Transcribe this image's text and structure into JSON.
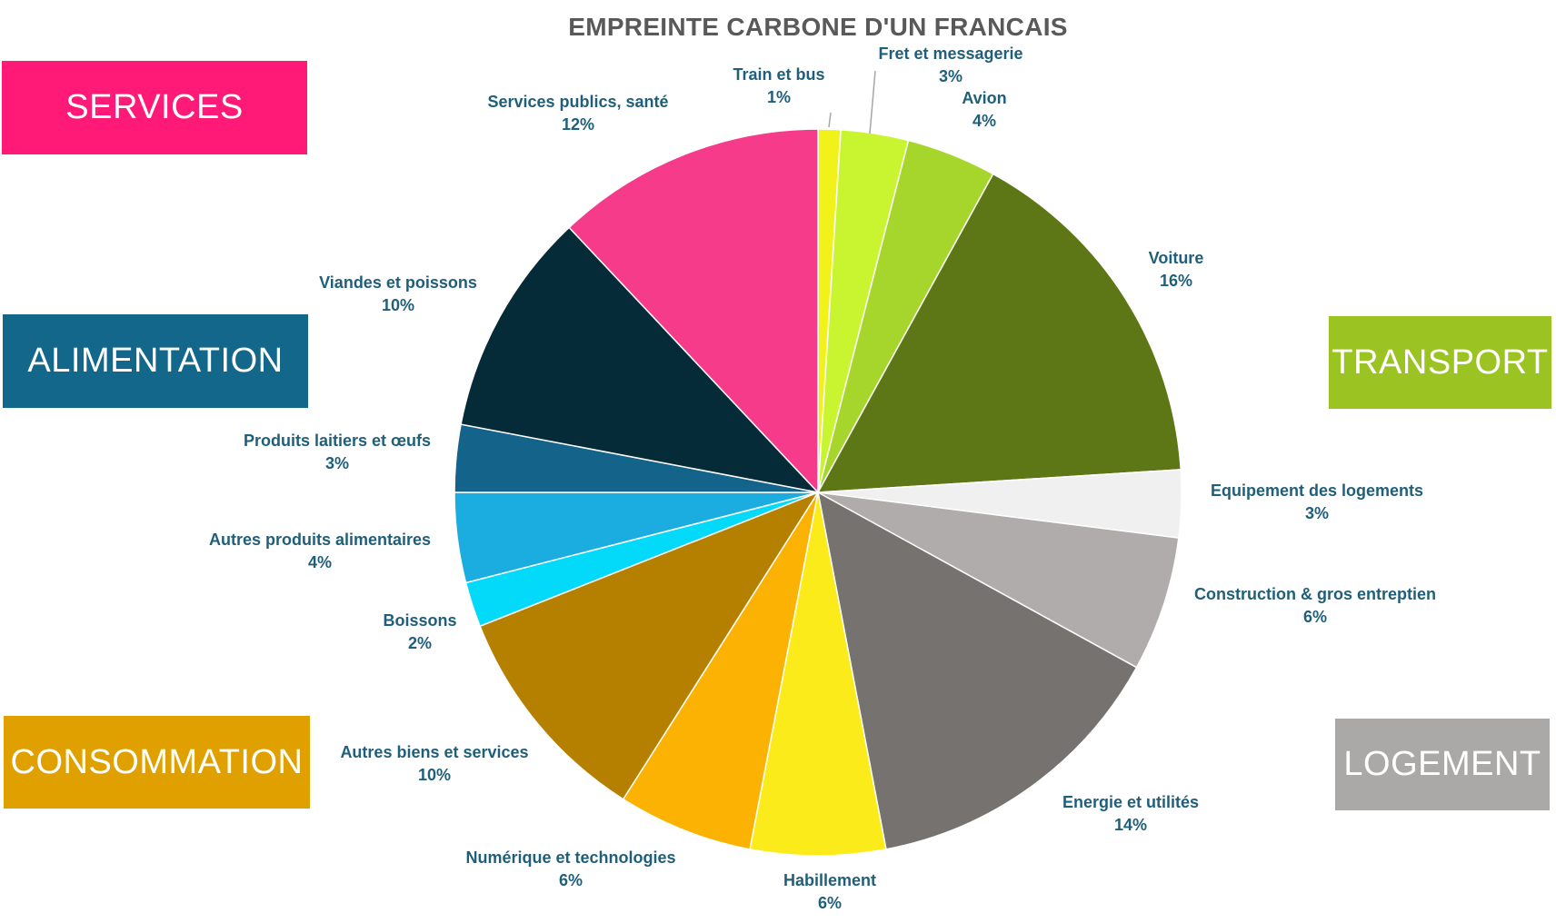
{
  "chart_data": {
    "type": "pie",
    "title": "EMPREINTE CARBONE D'UN FRANCAIS",
    "start_angle_deg": 0,
    "direction": "clockwise",
    "slices": [
      {
        "label": "Train et bus",
        "value": 1,
        "value_label": "1%",
        "color": "#F2F21B"
      },
      {
        "label": "Fret et messagerie",
        "value": 3,
        "value_label": "3%",
        "color": "#C8F52F"
      },
      {
        "label": "Avion",
        "value": 4,
        "value_label": "4%",
        "color": "#A6D62B"
      },
      {
        "label": "Voiture",
        "value": 16,
        "value_label": "16%",
        "color": "#5D7716"
      },
      {
        "label": "Equipement des logements",
        "value": 3,
        "value_label": "3%",
        "color": "#F0F0F0"
      },
      {
        "label": "Construction & gros entreptien",
        "value": 6,
        "value_label": "6%",
        "color": "#AFACAB"
      },
      {
        "label": "Energie et utilités",
        "value": 14,
        "value_label": "14%",
        "color": "#767270"
      },
      {
        "label": "Habillement",
        "value": 6,
        "value_label": "6%",
        "color": "#FBEB1A"
      },
      {
        "label": "Numérique et technologies",
        "value": 6,
        "value_label": "6%",
        "color": "#FBB202"
      },
      {
        "label": "Autres biens et services",
        "value": 10,
        "value_label": "10%",
        "color": "#B57F00"
      },
      {
        "label": "Boissons",
        "value": 2,
        "value_label": "2%",
        "color": "#03D9F9"
      },
      {
        "label": "Autres produits alimentaires",
        "value": 4,
        "value_label": "4%",
        "color": "#1BACE0"
      },
      {
        "label": "Produits laitiers et œufs",
        "value": 3,
        "value_label": "3%",
        "color": "#13638A"
      },
      {
        "label": "Viandes et poissons",
        "value": 10,
        "value_label": "10%",
        "color": "#052A38"
      },
      {
        "label": "Services publics, santé",
        "value": 12,
        "value_label": "12%",
        "color": "#F73B8B"
      }
    ]
  },
  "categories": {
    "services": {
      "label": "SERVICES",
      "color": "#FE1A76"
    },
    "alimentation": {
      "label": "ALIMENTATION",
      "color": "#13678A"
    },
    "consommation": {
      "label": "CONSOMMATION",
      "color": "#E0A100"
    },
    "transport": {
      "label": "TRANSPORT",
      "color": "#9BC422"
    },
    "logement": {
      "label": "LOGEMENT",
      "color": "#ABA9A8"
    }
  }
}
